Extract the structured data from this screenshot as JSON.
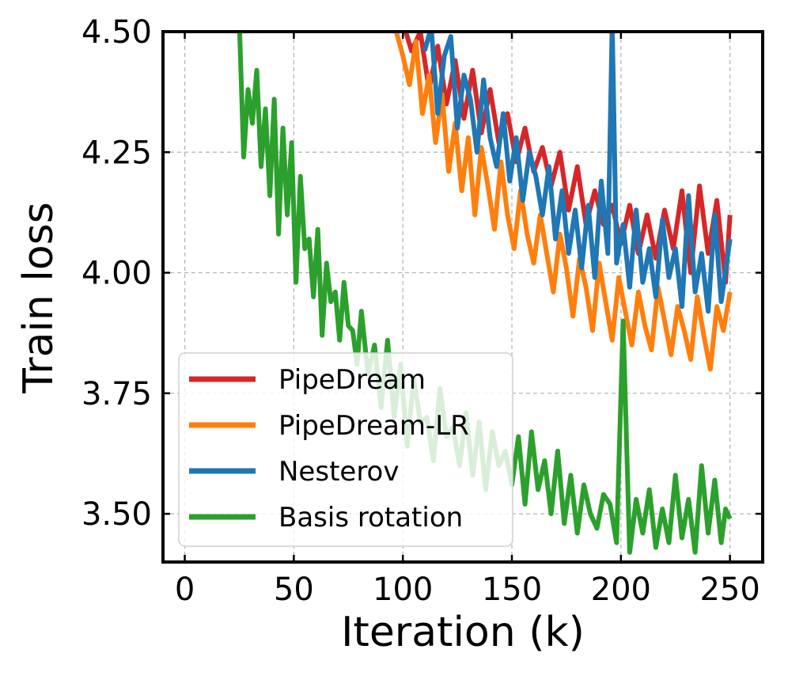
{
  "chart_data": {
    "type": "line",
    "xlabel": "Iteration (k)",
    "ylabel": "Train loss",
    "xlim": [
      -10,
      265
    ],
    "ylim": [
      3.4,
      4.5
    ],
    "xticks": [
      0,
      50,
      100,
      150,
      200,
      250
    ],
    "xtick_labels": [
      "0",
      "50",
      "100",
      "150",
      "200",
      "250"
    ],
    "yticks": [
      3.5,
      3.75,
      4.0,
      4.25,
      4.5
    ],
    "ytick_labels": [
      "3.50",
      "3.75",
      "4.00",
      "4.25",
      "4.50"
    ],
    "grid": true,
    "legend_position": "lower-left",
    "series": [
      {
        "name": "PipeDream",
        "color": "#d62728",
        "x": [
          100,
          104,
          108,
          112,
          116,
          120,
          124,
          128,
          132,
          136,
          140,
          144,
          148,
          152,
          156,
          160,
          164,
          168,
          172,
          176,
          180,
          184,
          188,
          192,
          196,
          200,
          204,
          208,
          212,
          216,
          220,
          224,
          228,
          232,
          236,
          240,
          244,
          248,
          250
        ],
        "y": [
          4.52,
          4.46,
          4.5,
          4.38,
          4.47,
          4.35,
          4.44,
          4.32,
          4.42,
          4.29,
          4.38,
          4.27,
          4.33,
          4.23,
          4.3,
          4.21,
          4.26,
          4.18,
          4.25,
          4.13,
          4.22,
          4.1,
          4.17,
          4.1,
          4.14,
          4.06,
          4.14,
          4.04,
          4.12,
          4.03,
          4.13,
          4.05,
          4.17,
          4.0,
          4.18,
          4.04,
          4.15,
          3.98,
          4.12
        ]
      },
      {
        "name": "PipeDream-LR",
        "color": "#ff7f0e",
        "x": [
          97,
          100,
          103,
          106,
          109,
          112,
          115,
          118,
          121,
          124,
          127,
          130,
          133,
          136,
          139,
          142,
          145,
          148,
          151,
          154,
          157,
          160,
          163,
          166,
          169,
          172,
          175,
          178,
          181,
          184,
          187,
          190,
          193,
          196,
          199,
          202,
          205,
          208,
          211,
          214,
          217,
          220,
          223,
          226,
          229,
          232,
          235,
          238,
          241,
          244,
          247,
          250
        ],
        "y": [
          4.5,
          4.45,
          4.39,
          4.48,
          4.33,
          4.41,
          4.27,
          4.37,
          4.21,
          4.31,
          4.17,
          4.28,
          4.12,
          4.26,
          4.18,
          4.09,
          4.23,
          4.12,
          4.05,
          4.17,
          4.08,
          4.02,
          4.12,
          4.04,
          3.96,
          4.08,
          4.01,
          3.91,
          4.03,
          3.97,
          3.88,
          4.02,
          3.94,
          3.86,
          3.99,
          3.92,
          3.85,
          3.96,
          3.89,
          3.84,
          3.97,
          3.9,
          3.83,
          3.93,
          3.88,
          3.82,
          3.95,
          3.87,
          3.8,
          3.93,
          3.88,
          3.96
        ]
      },
      {
        "name": "Nesterov",
        "color": "#1f77b4",
        "x": [
          110,
          113,
          116,
          119,
          122,
          125,
          128,
          131,
          134,
          137,
          140,
          143,
          146,
          149,
          152,
          155,
          158,
          161,
          164,
          167,
          170,
          173,
          176,
          179,
          182,
          185,
          188,
          191,
          194,
          196,
          198,
          201,
          204,
          207,
          210,
          213,
          216,
          219,
          222,
          225,
          228,
          231,
          234,
          237,
          240,
          243,
          246,
          250
        ],
        "y": [
          4.46,
          4.51,
          4.33,
          4.45,
          4.49,
          4.3,
          4.41,
          4.36,
          4.25,
          4.4,
          4.28,
          4.22,
          4.33,
          4.19,
          4.28,
          4.15,
          4.25,
          4.2,
          4.12,
          4.22,
          4.07,
          4.17,
          4.04,
          4.13,
          4.01,
          4.14,
          3.99,
          4.19,
          4.04,
          4.52,
          4.02,
          4.1,
          3.97,
          4.13,
          3.98,
          4.05,
          3.95,
          4.11,
          3.99,
          4.05,
          3.93,
          4.16,
          3.96,
          4.04,
          3.92,
          4.12,
          3.94,
          4.07
        ]
      },
      {
        "name": "Basis rotation",
        "color": "#2ca02c",
        "x": [
          25,
          27,
          29,
          31,
          33,
          35,
          37,
          39,
          41,
          43,
          45,
          47,
          49,
          51,
          53,
          55,
          57,
          59,
          61,
          63,
          65,
          67,
          69,
          71,
          73,
          75,
          77,
          79,
          81,
          84,
          87,
          90,
          93,
          96,
          99,
          102,
          105,
          108,
          111,
          114,
          117,
          120,
          123,
          126,
          129,
          132,
          135,
          138,
          141,
          144,
          147,
          150,
          153,
          156,
          159,
          162,
          165,
          168,
          171,
          174,
          177,
          180,
          183,
          186,
          189,
          192,
          195,
          198,
          201,
          204,
          207,
          210,
          213,
          216,
          219,
          222,
          225,
          228,
          231,
          234,
          237,
          240,
          243,
          246,
          248,
          250
        ],
        "y": [
          4.52,
          4.24,
          4.38,
          4.31,
          4.42,
          4.22,
          4.34,
          4.16,
          4.36,
          4.08,
          4.3,
          4.12,
          4.27,
          3.98,
          4.2,
          4.05,
          4.07,
          3.95,
          4.09,
          3.87,
          4.02,
          3.94,
          3.96,
          3.86,
          3.98,
          3.89,
          3.88,
          3.81,
          3.92,
          3.79,
          3.85,
          3.72,
          3.86,
          3.7,
          3.81,
          3.64,
          3.78,
          3.69,
          3.7,
          3.61,
          3.76,
          3.66,
          3.68,
          3.6,
          3.71,
          3.58,
          3.69,
          3.55,
          3.67,
          3.6,
          3.63,
          3.56,
          3.66,
          3.52,
          3.67,
          3.55,
          3.61,
          3.5,
          3.63,
          3.48,
          3.58,
          3.46,
          3.56,
          3.5,
          3.47,
          3.54,
          3.52,
          3.44,
          3.9,
          3.42,
          3.53,
          3.46,
          3.55,
          3.43,
          3.51,
          3.44,
          3.58,
          3.45,
          3.53,
          3.42,
          3.6,
          3.46,
          3.57,
          3.44,
          3.51,
          3.49
        ]
      }
    ]
  }
}
